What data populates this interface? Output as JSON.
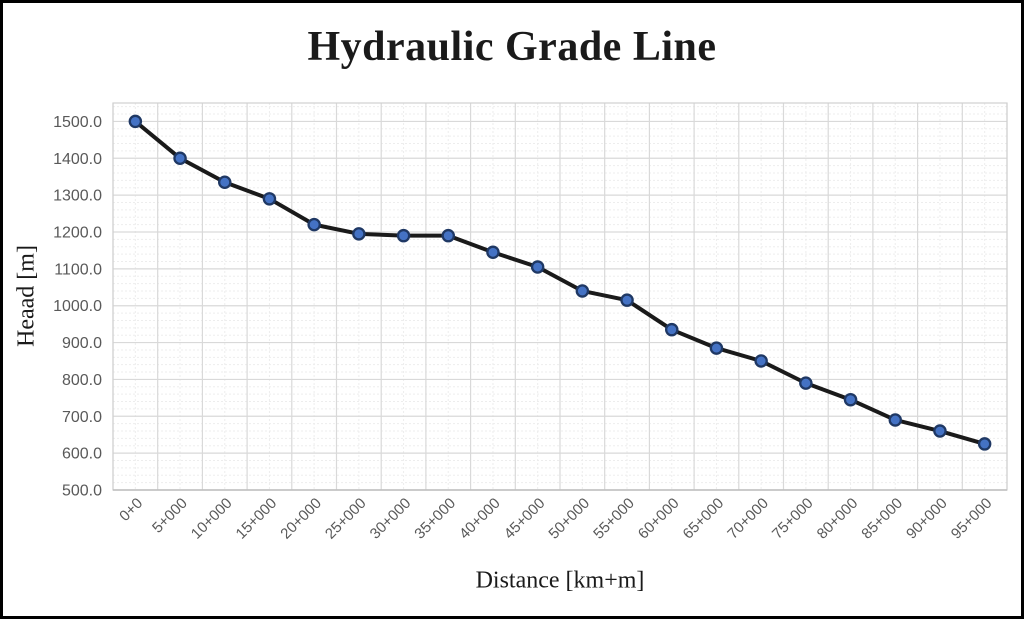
{
  "window": {
    "background": "#FFFFFF",
    "border_color": "#000000"
  },
  "chart_data": {
    "type": "line",
    "title": "Hydraulic Grade Line",
    "xlabel": "Distance [km+m]",
    "ylabel": "Heaad [m]",
    "categories": [
      "0+0",
      "5+000",
      "10+000",
      "15+000",
      "20+000",
      "25+000",
      "30+000",
      "35+000",
      "40+000",
      "45+000",
      "50+000",
      "55+000",
      "60+000",
      "65+000",
      "70+000",
      "75+000",
      "80+000",
      "85+000",
      "90+000",
      "95+000"
    ],
    "values": [
      1500,
      1400,
      1335,
      1290,
      1220,
      1195,
      1190,
      1190,
      1145,
      1105,
      1040,
      1015,
      935,
      885,
      850,
      790,
      745,
      690,
      660,
      625
    ],
    "yticks": [
      1500,
      1400,
      1300,
      1200,
      1100,
      1000,
      900,
      800,
      700,
      600,
      500
    ],
    "ytick_labels": [
      "1500.0",
      "1400.0",
      "1300.0",
      "1200.0",
      "1100.0",
      "1000.0",
      "900.0",
      "800.0",
      "700.0",
      "600.0",
      "500.0"
    ],
    "ylim": [
      500,
      1500
    ],
    "y_major_step": 100,
    "y_minor_step": 20,
    "grid": "major+minor",
    "legend": "none",
    "marker_shape": "circle",
    "colors": {
      "line": "#1A1A1A",
      "marker_fill": "#4472C4",
      "marker_stroke": "#1F3864",
      "grid_major": "#D9D9D9",
      "grid_minor": "#EDEDED",
      "axis_line": "#BFBFBF",
      "plot_border": "#D0D0D0",
      "tick_text": "#595959",
      "title_text": "#1A1A1A"
    }
  }
}
